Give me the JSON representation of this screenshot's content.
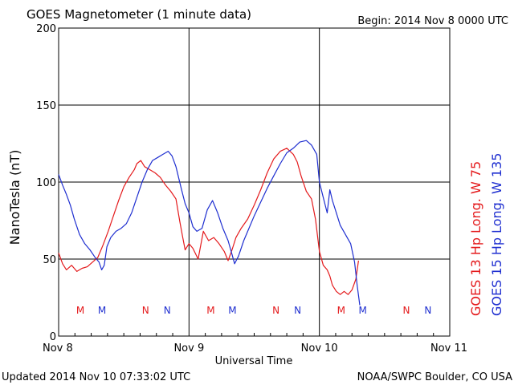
{
  "header": {
    "title": "GOES Magnetometer (1 minute data)",
    "begin_label": "Begin:  2014 Nov 8 0000 UTC"
  },
  "footer": {
    "updated": "Updated 2014 Nov 10 07:33:02 UTC",
    "source": "NOAA/SWPC Boulder, CO USA"
  },
  "colors": {
    "goes13": "#e41a1c",
    "goes15": "#1f2fd0",
    "grid": "#000000"
  },
  "chart_data": {
    "type": "line",
    "xlabel": "Universal Time",
    "ylabel": "NanoTesla (nT)",
    "xlim": [
      0,
      3
    ],
    "ylim": [
      0,
      200
    ],
    "grid": true,
    "x_ticks": [
      {
        "x": 0,
        "label": "Nov 8"
      },
      {
        "x": 1,
        "label": "Nov 9"
      },
      {
        "x": 2,
        "label": "Nov 10"
      },
      {
        "x": 3,
        "label": "Nov 11"
      }
    ],
    "y_ticks": [
      0,
      50,
      100,
      150,
      200
    ],
    "legend_position": "right",
    "series": [
      {
        "name": "GOES 13 Hp  Long. W 75",
        "color": "#e41a1c",
        "points": [
          [
            0.0,
            54
          ],
          [
            0.03,
            47
          ],
          [
            0.06,
            43
          ],
          [
            0.1,
            46
          ],
          [
            0.14,
            42
          ],
          [
            0.18,
            44
          ],
          [
            0.22,
            45
          ],
          [
            0.26,
            48
          ],
          [
            0.3,
            51
          ],
          [
            0.34,
            59
          ],
          [
            0.38,
            68
          ],
          [
            0.42,
            78
          ],
          [
            0.46,
            88
          ],
          [
            0.5,
            97
          ],
          [
            0.54,
            103
          ],
          [
            0.58,
            108
          ],
          [
            0.6,
            112
          ],
          [
            0.63,
            114
          ],
          [
            0.66,
            110
          ],
          [
            0.7,
            108
          ],
          [
            0.74,
            106
          ],
          [
            0.78,
            103
          ],
          [
            0.82,
            98
          ],
          [
            0.86,
            94
          ],
          [
            0.9,
            89
          ],
          [
            0.93,
            74
          ],
          [
            0.95,
            65
          ],
          [
            0.97,
            56
          ],
          [
            1.0,
            60
          ],
          [
            1.03,
            57
          ],
          [
            1.07,
            50
          ],
          [
            1.11,
            68
          ],
          [
            1.15,
            62
          ],
          [
            1.19,
            64
          ],
          [
            1.23,
            60
          ],
          [
            1.27,
            55
          ],
          [
            1.3,
            49
          ],
          [
            1.33,
            56
          ],
          [
            1.36,
            64
          ],
          [
            1.4,
            70
          ],
          [
            1.45,
            76
          ],
          [
            1.5,
            85
          ],
          [
            1.55,
            95
          ],
          [
            1.6,
            106
          ],
          [
            1.65,
            115
          ],
          [
            1.7,
            120
          ],
          [
            1.75,
            122
          ],
          [
            1.8,
            118
          ],
          [
            1.83,
            113
          ],
          [
            1.86,
            104
          ],
          [
            1.9,
            94
          ],
          [
            1.94,
            89
          ],
          [
            1.97,
            76
          ],
          [
            2.0,
            55
          ],
          [
            2.03,
            46
          ],
          [
            2.06,
            43
          ],
          [
            2.08,
            39
          ],
          [
            2.1,
            33
          ],
          [
            2.13,
            29
          ],
          [
            2.16,
            27
          ],
          [
            2.19,
            29
          ],
          [
            2.22,
            27
          ],
          [
            2.25,
            30
          ],
          [
            2.28,
            37
          ],
          [
            2.3,
            49
          ]
        ],
        "markers": [
          {
            "x": 0.167,
            "label": "M"
          },
          {
            "x": 0.667,
            "label": "N"
          },
          {
            "x": 1.167,
            "label": "M"
          },
          {
            "x": 1.667,
            "label": "N"
          },
          {
            "x": 2.167,
            "label": "M"
          },
          {
            "x": 2.667,
            "label": "N"
          }
        ]
      },
      {
        "name": "GOES 15 Hp  Long. W 135",
        "color": "#1f2fd0",
        "points": [
          [
            0.0,
            105
          ],
          [
            0.03,
            98
          ],
          [
            0.06,
            92
          ],
          [
            0.09,
            85
          ],
          [
            0.12,
            76
          ],
          [
            0.16,
            66
          ],
          [
            0.2,
            60
          ],
          [
            0.24,
            56
          ],
          [
            0.28,
            51
          ],
          [
            0.31,
            48
          ],
          [
            0.33,
            43
          ],
          [
            0.35,
            46
          ],
          [
            0.37,
            58
          ],
          [
            0.4,
            64
          ],
          [
            0.44,
            68
          ],
          [
            0.48,
            70
          ],
          [
            0.52,
            73
          ],
          [
            0.56,
            80
          ],
          [
            0.6,
            90
          ],
          [
            0.64,
            100
          ],
          [
            0.68,
            108
          ],
          [
            0.72,
            114
          ],
          [
            0.76,
            116
          ],
          [
            0.8,
            118
          ],
          [
            0.84,
            120
          ],
          [
            0.87,
            117
          ],
          [
            0.9,
            110
          ],
          [
            0.94,
            96
          ],
          [
            0.97,
            86
          ],
          [
            1.0,
            80
          ],
          [
            1.03,
            71
          ],
          [
            1.06,
            68
          ],
          [
            1.1,
            70
          ],
          [
            1.14,
            82
          ],
          [
            1.18,
            88
          ],
          [
            1.22,
            80
          ],
          [
            1.26,
            70
          ],
          [
            1.3,
            62
          ],
          [
            1.33,
            53
          ],
          [
            1.35,
            47
          ],
          [
            1.38,
            52
          ],
          [
            1.42,
            62
          ],
          [
            1.46,
            70
          ],
          [
            1.5,
            78
          ],
          [
            1.55,
            87
          ],
          [
            1.6,
            96
          ],
          [
            1.65,
            104
          ],
          [
            1.7,
            112
          ],
          [
            1.75,
            119
          ],
          [
            1.8,
            122
          ],
          [
            1.85,
            126
          ],
          [
            1.9,
            127
          ],
          [
            1.94,
            124
          ],
          [
            1.98,
            118
          ],
          [
            2.0,
            100
          ],
          [
            2.03,
            90
          ],
          [
            2.06,
            80
          ],
          [
            2.08,
            95
          ],
          [
            2.1,
            88
          ],
          [
            2.13,
            80
          ],
          [
            2.16,
            72
          ],
          [
            2.2,
            66
          ],
          [
            2.24,
            60
          ],
          [
            2.27,
            48
          ],
          [
            2.29,
            33
          ],
          [
            2.31,
            20
          ]
        ],
        "markers": [
          {
            "x": 0.333,
            "label": "M"
          },
          {
            "x": 0.833,
            "label": "N"
          },
          {
            "x": 1.333,
            "label": "M"
          },
          {
            "x": 1.833,
            "label": "N"
          },
          {
            "x": 2.333,
            "label": "M"
          },
          {
            "x": 2.833,
            "label": "N"
          }
        ]
      }
    ]
  }
}
